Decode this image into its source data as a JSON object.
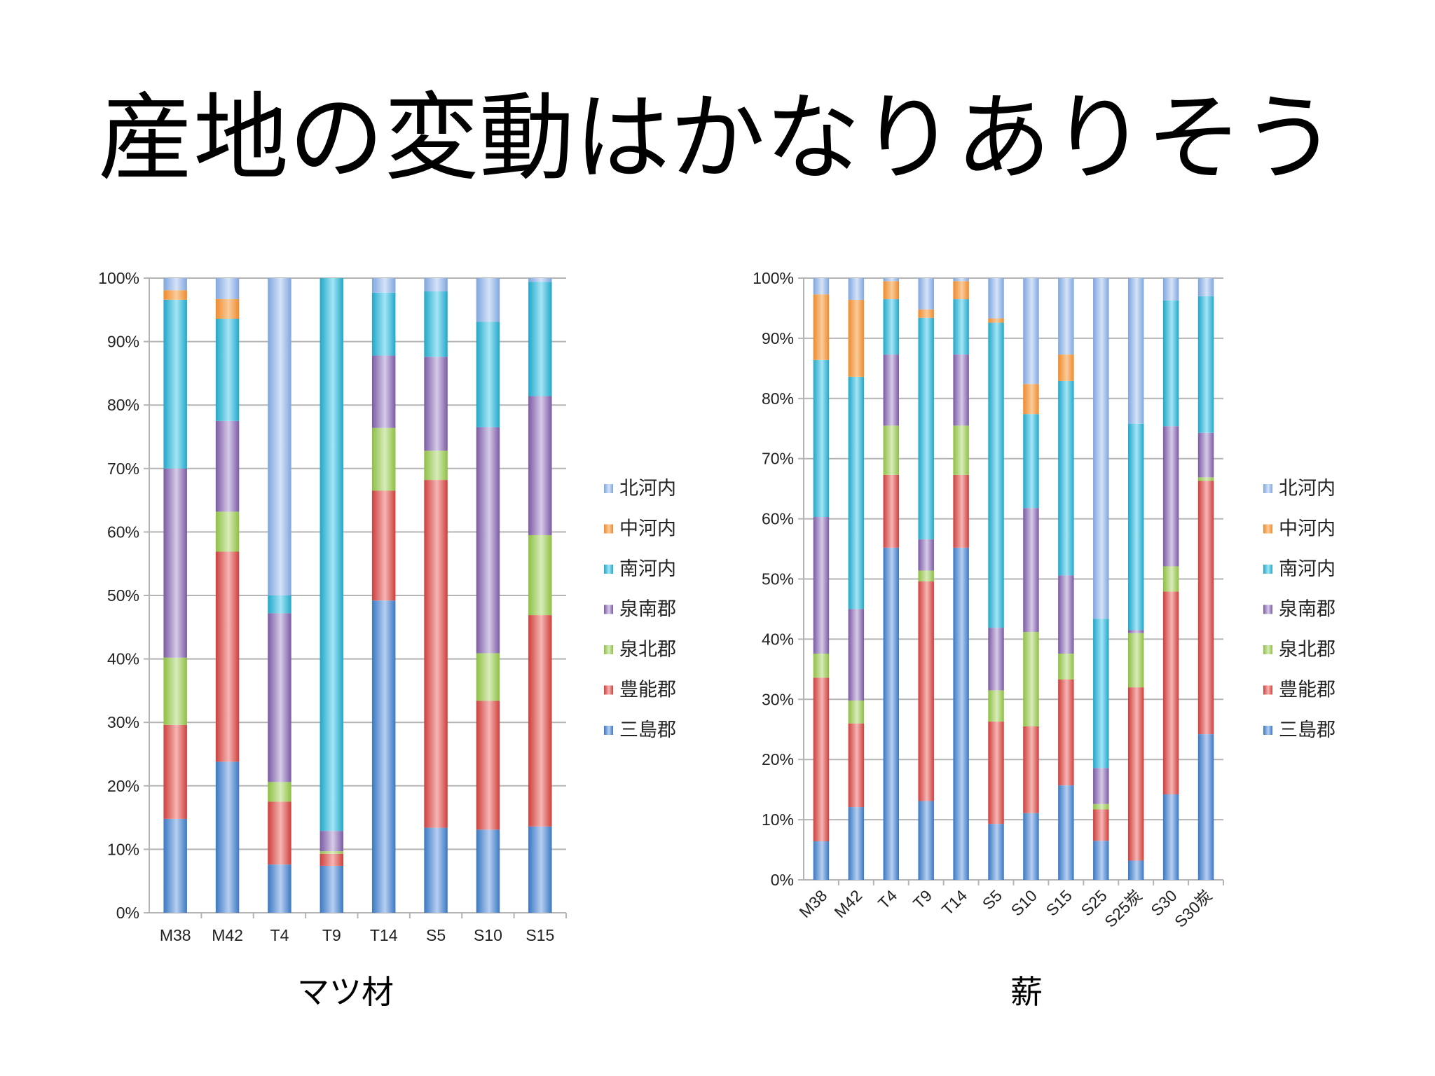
{
  "slide": {
    "title": "産地の変動はかなりありそう"
  },
  "colors": {
    "三島郡": [
      "#3a78c2",
      "#b7cff1"
    ],
    "豊能郡": [
      "#cd3f3c",
      "#f6b6b4"
    ],
    "泉北郡": [
      "#8ebf43",
      "#d8ecbb"
    ],
    "泉南郡": [
      "#7b5aa3",
      "#d6cbe8"
    ],
    "南河内": [
      "#22a7c9",
      "#a4e5f5"
    ],
    "中河内": [
      "#ee8a2c",
      "#f9cc9b"
    ],
    "北河内": [
      "#7fa6df",
      "#d5e3f7"
    ]
  },
  "chart_data": [
    {
      "type": "bar",
      "stacked": "percent",
      "caption": "マツ材",
      "categories": [
        "M38",
        "M42",
        "T4",
        "T9",
        "T14",
        "S5",
        "S10",
        "S15"
      ],
      "y_ticks": [
        "0%",
        "10%",
        "20%",
        "30%",
        "40%",
        "50%",
        "60%",
        "70%",
        "80%",
        "90%",
        "100%"
      ],
      "ylim": [
        0,
        100
      ],
      "legend_position": "right",
      "legend": [
        "北河内",
        "中河内",
        "南河内",
        "泉南郡",
        "泉北郡",
        "豊能郡",
        "三島郡"
      ],
      "series": [
        {
          "name": "三島郡",
          "values": [
            14.8,
            23.8,
            7.6,
            7.4,
            49.2,
            13.4,
            13.1,
            13.6
          ]
        },
        {
          "name": "豊能郡",
          "values": [
            14.8,
            33.1,
            9.9,
            1.9,
            17.3,
            54.8,
            20.3,
            33.3
          ]
        },
        {
          "name": "泉北郡",
          "values": [
            10.6,
            6.3,
            3.1,
            0.4,
            9.9,
            4.6,
            7.5,
            12.6
          ]
        },
        {
          "name": "泉南郡",
          "values": [
            29.8,
            14.3,
            26.6,
            3.2,
            11.4,
            14.8,
            35.6,
            21.9
          ]
        },
        {
          "name": "南河内",
          "values": [
            26.6,
            16.1,
            2.8,
            87.1,
            9.9,
            10.3,
            16.6,
            18.0
          ]
        },
        {
          "name": "中河内",
          "values": [
            1.5,
            3.1,
            0.0,
            0.0,
            0.0,
            0.0,
            0.0,
            0.0
          ]
        },
        {
          "name": "北河内",
          "values": [
            1.9,
            3.3,
            50.0,
            0.0,
            2.3,
            2.1,
            6.9,
            0.6
          ]
        }
      ]
    },
    {
      "type": "bar",
      "stacked": "percent",
      "caption": "薪",
      "categories": [
        "M38",
        "M42",
        "T4",
        "T9",
        "T14",
        "S5",
        "S10",
        "S15",
        "S25",
        "S25炭",
        "S30",
        "S30炭"
      ],
      "y_ticks": [
        "0%",
        "10%",
        "20%",
        "30%",
        "40%",
        "50%",
        "60%",
        "70%",
        "80%",
        "90%",
        "100%"
      ],
      "ylim": [
        0,
        100
      ],
      "legend_position": "right",
      "legend": [
        "北河内",
        "中河内",
        "南河内",
        "泉南郡",
        "泉北郡",
        "豊能郡",
        "三島郡"
      ],
      "series": [
        {
          "name": "三島郡",
          "values": [
            6.4,
            12.1,
            55.2,
            13.1,
            55.2,
            9.3,
            11.1,
            15.7,
            6.5,
            3.2,
            14.2,
            24.2
          ]
        },
        {
          "name": "豊能郡",
          "values": [
            27.2,
            13.9,
            12.1,
            36.5,
            12.1,
            17.0,
            14.4,
            17.6,
            5.2,
            28.8,
            33.7,
            42.1
          ]
        },
        {
          "name": "泉北郡",
          "values": [
            4.0,
            3.8,
            8.2,
            1.8,
            8.2,
            5.2,
            15.7,
            4.3,
            0.9,
            9.0,
            4.2,
            0.6
          ]
        },
        {
          "name": "泉南郡",
          "values": [
            22.7,
            15.2,
            11.8,
            5.2,
            11.8,
            10.4,
            20.6,
            13.0,
            6.0,
            0.5,
            23.3,
            7.4
          ]
        },
        {
          "name": "南河内",
          "values": [
            26.1,
            38.6,
            9.2,
            36.8,
            9.2,
            50.7,
            15.6,
            32.3,
            24.8,
            34.3,
            20.9,
            22.7
          ]
        },
        {
          "name": "中河内",
          "values": [
            10.9,
            12.8,
            3.0,
            1.4,
            3.0,
            0.7,
            5.0,
            4.4,
            0.0,
            0.0,
            0.0,
            0.0
          ]
        },
        {
          "name": "北河内",
          "values": [
            2.7,
            3.6,
            0.5,
            5.2,
            0.5,
            6.7,
            17.6,
            12.7,
            56.6,
            24.2,
            3.7,
            3.0
          ]
        }
      ]
    }
  ]
}
